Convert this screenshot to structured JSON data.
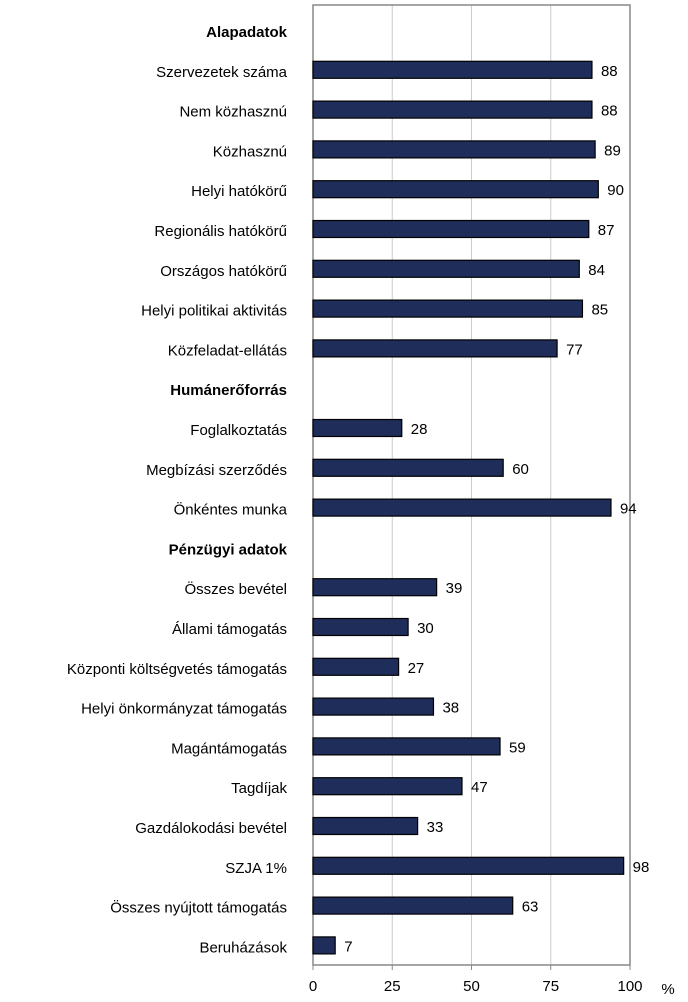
{
  "chart_data": {
    "type": "bar",
    "orientation": "horizontal",
    "categories": [
      "Alapadatok",
      "Szervezetek száma",
      "Nem közhasznú",
      "Közhasznú",
      "Helyi hatókörű",
      "Regionális hatókörű",
      "Országos hatókörű",
      "Helyi politikai aktivitás",
      "Közfeladat-ellátás",
      "Humánerőforrás",
      "Foglalkoztatás",
      "Megbízási szerződés",
      "Önkéntes munka",
      "Pénzügyi adatok",
      "Összes bevétel",
      "Állami támogatás",
      "Központi költségvetés támogatás",
      "Helyi önkormányzat támogatás",
      "Magántámogatás",
      "Tagdíjak",
      "Gazdálokodási bevétel",
      "SZJA 1%",
      "Összes nyújtott támogatás",
      "Beruházások"
    ],
    "values": [
      null,
      88,
      88,
      89,
      90,
      87,
      84,
      85,
      77,
      null,
      28,
      60,
      94,
      null,
      39,
      30,
      27,
      38,
      59,
      47,
      33,
      98,
      63,
      7
    ],
    "color": "#1f2d5a",
    "xlabel": "%",
    "xlim": [
      0,
      100
    ],
    "xticks": [
      0,
      25,
      50,
      75,
      100
    ],
    "grid": true
  }
}
